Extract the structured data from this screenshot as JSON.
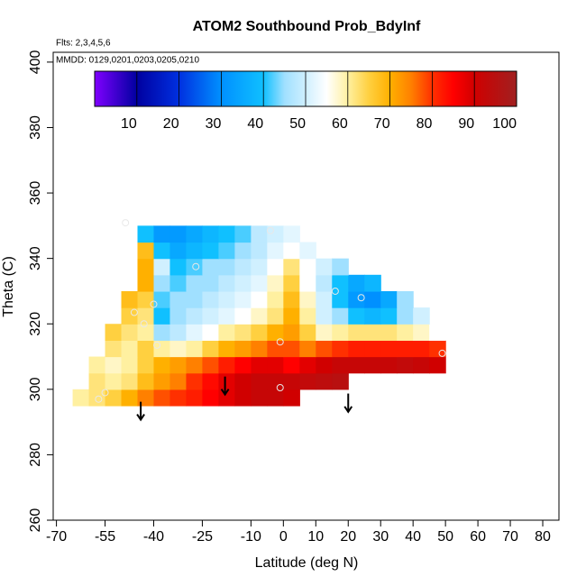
{
  "chart_data": {
    "type": "heatmap",
    "title": "ATOM2 Southbound Prob_BdyInf",
    "annotations": [
      "Flts: 2,3,4,5,6",
      "MMDD: 0129,0201,0203,0205,0210"
    ],
    "xlabel": "Latitude (deg N)",
    "ylabel": "Theta (C)",
    "xlim": [
      -71,
      85
    ],
    "ylim": [
      260,
      403
    ],
    "xticks": [
      -70,
      -55,
      -40,
      -25,
      -10,
      0,
      10,
      20,
      30,
      40,
      50,
      60,
      70,
      80
    ],
    "yticks": [
      260,
      280,
      300,
      320,
      340,
      360,
      380,
      400
    ],
    "lat_edges": [
      -65,
      -60,
      -55,
      -50,
      -45,
      -40,
      -35,
      -30,
      -25,
      -20,
      -15,
      -10,
      -5,
      0,
      5,
      10,
      15,
      20,
      25,
      30,
      35,
      40,
      45,
      50
    ],
    "theta_edges": [
      295,
      300,
      305,
      310,
      315,
      320,
      325,
      330,
      335,
      340,
      345,
      350
    ],
    "z": [
      [
        60,
        62,
        65,
        70,
        75,
        78,
        80,
        82,
        85,
        88,
        90,
        92,
        92,
        90,
        null,
        null,
        null,
        null,
        null,
        null,
        null,
        null,
        null
      ],
      [
        null,
        62,
        60,
        62,
        68,
        72,
        75,
        80,
        84,
        88,
        90,
        92,
        92,
        92,
        93,
        94,
        95,
        null,
        null,
        null,
        null,
        null,
        null
      ],
      [
        null,
        60,
        58,
        60,
        65,
        70,
        72,
        75,
        78,
        82,
        85,
        88,
        88,
        85,
        88,
        90,
        92,
        92,
        92,
        92,
        93,
        92,
        90
      ],
      [
        null,
        null,
        62,
        60,
        65,
        60,
        58,
        60,
        65,
        70,
        72,
        75,
        78,
        78,
        75,
        78,
        80,
        82,
        82,
        82,
        82,
        82,
        80
      ],
      [
        null,
        null,
        65,
        62,
        60,
        45,
        48,
        52,
        55,
        60,
        62,
        65,
        70,
        72,
        65,
        58,
        60,
        62,
        62,
        62,
        60,
        58,
        55
      ],
      [
        null,
        null,
        null,
        65,
        62,
        40,
        45,
        48,
        50,
        52,
        55,
        58,
        62,
        70,
        60,
        50,
        45,
        40,
        38,
        40,
        45,
        50,
        null
      ],
      [
        null,
        null,
        null,
        68,
        65,
        42,
        45,
        45,
        48,
        50,
        52,
        55,
        60,
        68,
        58,
        50,
        40,
        32,
        30,
        35,
        45,
        null,
        null
      ],
      [
        null,
        null,
        null,
        null,
        70,
        45,
        42,
        45,
        45,
        48,
        50,
        52,
        58,
        65,
        55,
        48,
        40,
        35,
        38,
        null,
        null,
        null,
        null
      ],
      [
        null,
        null,
        null,
        null,
        70,
        50,
        40,
        42,
        45,
        45,
        48,
        50,
        55,
        62,
        55,
        50,
        45,
        null,
        null,
        null,
        null,
        null,
        null
      ],
      [
        null,
        null,
        null,
        null,
        68,
        40,
        35,
        38,
        40,
        42,
        45,
        48,
        52,
        55,
        52,
        null,
        null,
        null,
        null,
        null,
        null,
        null,
        null
      ],
      [
        null,
        null,
        null,
        null,
        40,
        32,
        32,
        35,
        38,
        40,
        42,
        48,
        50,
        52,
        null,
        null,
        null,
        null,
        null,
        null,
        null,
        null,
        null
      ]
    ],
    "colorscale": [
      [
        0,
        "#8000ff"
      ],
      [
        10,
        "#0000a0"
      ],
      [
        20,
        "#0030e0"
      ],
      [
        30,
        "#0090ff"
      ],
      [
        40,
        "#10c0ff"
      ],
      [
        45,
        "#a0e0ff"
      ],
      [
        55,
        "#ffffff"
      ],
      [
        60,
        "#fff0a0"
      ],
      [
        65,
        "#ffd040"
      ],
      [
        70,
        "#ffb000"
      ],
      [
        75,
        "#ff8000"
      ],
      [
        80,
        "#ff3000"
      ],
      [
        85,
        "#ff0000"
      ],
      [
        90,
        "#d00000"
      ],
      [
        100,
        "#a02020"
      ]
    ],
    "colorbar_lim": [
      0,
      100
    ],
    "colorbar_ticks": [
      10,
      20,
      30,
      40,
      50,
      60,
      70,
      80,
      90,
      100
    ],
    "points": {
      "lat": [
        -48.7,
        -4,
        -27,
        -40,
        -46,
        -43,
        -39,
        16,
        24,
        -1,
        -55,
        -57,
        -1,
        49
      ],
      "theta": [
        350.9,
        348.5,
        337.5,
        326,
        323.5,
        320,
        313.5,
        330,
        328,
        314.5,
        299,
        297,
        300.5,
        311
      ]
    },
    "arrows": {
      "lat": [
        -44,
        -18,
        20
      ],
      "theta_top": [
        296.2,
        303.9,
        298.7
      ],
      "theta_bottom": [
        290.7,
        298.4,
        293.1
      ]
    }
  }
}
